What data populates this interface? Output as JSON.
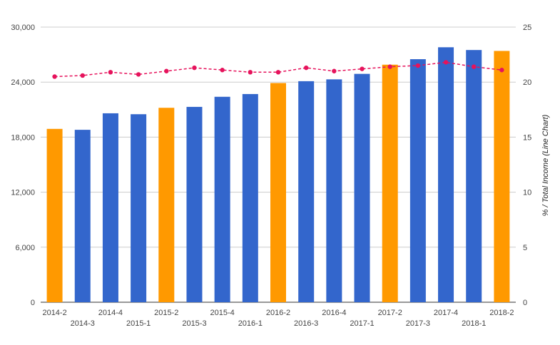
{
  "chart_data": {
    "type": "bar",
    "title": "",
    "xlabel": "",
    "ylabel": "",
    "y2label": "% / Total Income (Line Chart)",
    "categories": [
      "2014-2",
      "2014-3",
      "2014-4",
      "2015-1",
      "2015-2",
      "2015-3",
      "2015-4",
      "2016-1",
      "2016-2",
      "2016-3",
      "2016-4",
      "2017-1",
      "2017-2",
      "2017-3",
      "2017-4",
      "2018-1",
      "2018-2"
    ],
    "ylim": [
      0,
      30000
    ],
    "y_ticks": [
      "0",
      "6,000",
      "12,000",
      "18,000",
      "24,000",
      "30,000"
    ],
    "y_tick_values": [
      0,
      6000,
      12000,
      18000,
      24000,
      30000
    ],
    "y2lim": [
      0,
      25
    ],
    "y2_ticks": [
      "0",
      "5",
      "10",
      "15",
      "20",
      "25"
    ],
    "y2_tick_values": [
      0,
      5,
      10,
      15,
      20,
      25
    ],
    "grid": true,
    "legend": "none",
    "series": [
      {
        "type": "bar",
        "axis": "left",
        "values": [
          18900,
          18800,
          20600,
          20500,
          21200,
          21300,
          22400,
          22700,
          23900,
          24100,
          24300,
          24900,
          25900,
          26500,
          27800,
          27500,
          27400
        ],
        "colors": [
          "#ff9900",
          "#3366cc",
          "#3366cc",
          "#3366cc",
          "#ff9900",
          "#3366cc",
          "#3366cc",
          "#3366cc",
          "#ff9900",
          "#3366cc",
          "#3366cc",
          "#3366cc",
          "#ff9900",
          "#3366cc",
          "#3366cc",
          "#3366cc",
          "#ff9900"
        ]
      },
      {
        "type": "line",
        "axis": "right",
        "style": "dashed",
        "marker": "circle",
        "color": "#e6135c",
        "values": [
          20.5,
          20.6,
          20.9,
          20.7,
          21.0,
          21.3,
          21.1,
          20.9,
          20.9,
          21.3,
          21.0,
          21.2,
          21.4,
          21.5,
          21.8,
          21.4,
          21.1
        ]
      }
    ]
  }
}
